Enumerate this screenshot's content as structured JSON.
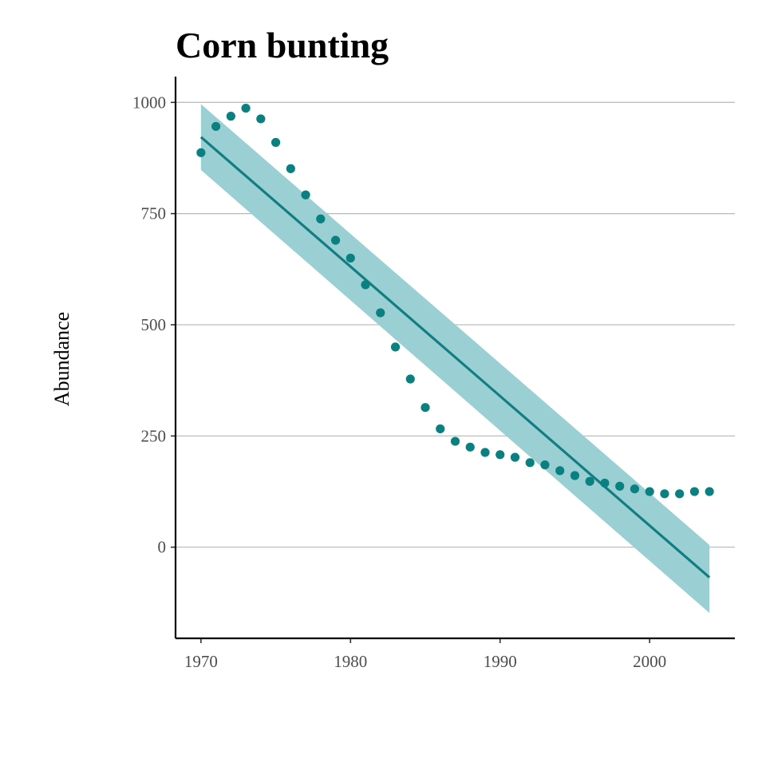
{
  "chart_data": {
    "type": "scatter",
    "title": "Corn bunting",
    "xlabel": "",
    "ylabel": "Abundance",
    "xlim": [
      1968.3,
      2005.7
    ],
    "ylim": [
      -205,
      1058
    ],
    "x_ticks": [
      1970,
      1980,
      1990,
      2000
    ],
    "y_ticks": [
      0,
      250,
      500,
      750,
      1000
    ],
    "grid": "horizontal",
    "colors": {
      "points": "#0b8080",
      "fit_line": "#127e82",
      "ribbon": "#9ad0d3"
    },
    "points": {
      "x": [
        1970,
        1971,
        1972,
        1973,
        1974,
        1975,
        1976,
        1977,
        1978,
        1979,
        1980,
        1981,
        1982,
        1983,
        1984,
        1985,
        1986,
        1987,
        1988,
        1989,
        1990,
        1991,
        1992,
        1993,
        1994,
        1995,
        1996,
        1997,
        1998,
        1999,
        2000,
        2001,
        2002,
        2003,
        2004
      ],
      "y": [
        887,
        946,
        969,
        987,
        963,
        910,
        851,
        792,
        738,
        690,
        650,
        590,
        527,
        450,
        378,
        314,
        266,
        238,
        225,
        213,
        208,
        202,
        190,
        185,
        172,
        161,
        148,
        144,
        137,
        131,
        125,
        120,
        120,
        125,
        125
      ]
    },
    "fit": {
      "x": [
        1970,
        2004
      ],
      "y": [
        922,
        -68
      ],
      "ci_lower": [
        848,
        -148
      ],
      "ci_upper": [
        996,
        5
      ]
    }
  }
}
